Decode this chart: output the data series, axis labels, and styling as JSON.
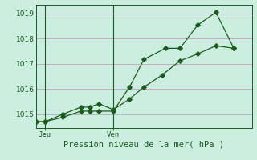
{
  "xlabel": "Pression niveau de la mer�  hPa �",
  "xlabel_display": "Pression niveau de la mer( hPa )",
  "background_color": "#cceee0",
  "grid_color": "#c8a8c8",
  "line_color": "#1a5c1a",
  "ylim": [
    1014.45,
    1019.35
  ],
  "yticks": [
    1015,
    1016,
    1017,
    1018,
    1019
  ],
  "xlim": [
    0,
    12
  ],
  "jeu_x": 0.5,
  "ven_x": 4.3,
  "vline1_x": 0.5,
  "vline2_x": 4.3,
  "line1_x": [
    0.0,
    0.5,
    1.5,
    2.5,
    3.0,
    3.5,
    4.3,
    5.2,
    6.0,
    7.2,
    8.0,
    9.0,
    10.0,
    11.0
  ],
  "line1_y": [
    1014.7,
    1014.7,
    1014.88,
    1015.12,
    1015.12,
    1015.12,
    1015.12,
    1016.08,
    1017.18,
    1017.62,
    1017.62,
    1018.55,
    1019.05,
    1017.62
  ],
  "line2_x": [
    0.0,
    0.5,
    1.5,
    2.5,
    3.0,
    3.5,
    4.3,
    5.2,
    6.0,
    7.0,
    8.0,
    9.0,
    10.0,
    11.0
  ],
  "line2_y": [
    1014.7,
    1014.7,
    1015.0,
    1015.28,
    1015.28,
    1015.42,
    1015.18,
    1015.6,
    1016.08,
    1016.55,
    1017.12,
    1017.4,
    1017.72,
    1017.62
  ],
  "markersize": 2.8,
  "linewidth": 0.9
}
